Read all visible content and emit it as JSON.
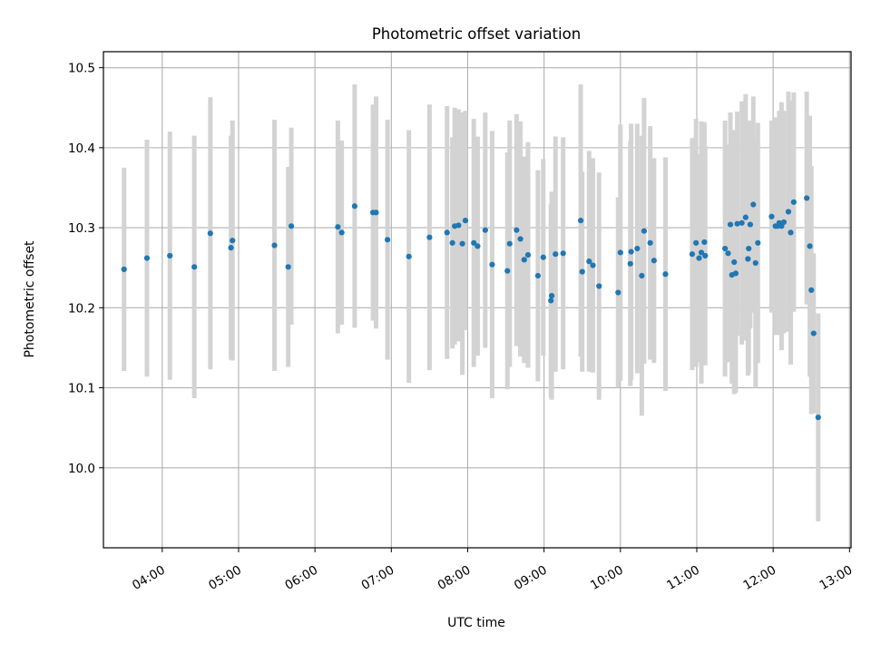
{
  "chart_data": {
    "type": "scatter",
    "title": "Photometric offset variation",
    "xlabel": "UTC time",
    "ylabel": "Photometric offset",
    "x_unit": "UTC hour",
    "xlim": [
      3.23,
      13.02
    ],
    "ylim": [
      9.9,
      10.52
    ],
    "grid": true,
    "xticks": [
      4,
      5,
      6,
      7,
      8,
      9,
      10,
      11,
      12,
      13
    ],
    "xtick_labels": [
      "04:00",
      "05:00",
      "06:00",
      "07:00",
      "08:00",
      "09:00",
      "10:00",
      "11:00",
      "12:00",
      "13:00"
    ],
    "yticks": [
      10.0,
      10.1,
      10.2,
      10.3,
      10.4,
      10.5
    ],
    "ytick_labels": [
      "10.0",
      "10.1",
      "10.2",
      "10.3",
      "10.4",
      "10.5"
    ],
    "colors": {
      "point": "#1f77b4",
      "errorbar": "#d3d3d3",
      "grid": "#b0b0b0"
    },
    "points": [
      [
        3.5,
        10.248,
        0.127
      ],
      [
        3.8,
        10.262,
        0.148
      ],
      [
        4.1,
        10.265,
        0.155
      ],
      [
        4.42,
        10.251,
        0.164
      ],
      [
        4.63,
        10.293,
        0.17
      ],
      [
        4.9,
        10.275,
        0.14
      ],
      [
        4.92,
        10.284,
        0.15
      ],
      [
        5.47,
        10.278,
        0.157
      ],
      [
        5.65,
        10.251,
        0.125
      ],
      [
        5.69,
        10.302,
        0.123
      ],
      [
        6.3,
        10.301,
        0.133
      ],
      [
        6.35,
        10.294,
        0.115
      ],
      [
        6.52,
        10.327,
        0.152
      ],
      [
        6.76,
        10.319,
        0.135
      ],
      [
        6.8,
        10.319,
        0.145
      ],
      [
        6.95,
        10.285,
        0.15
      ],
      [
        7.23,
        10.264,
        0.158
      ],
      [
        7.5,
        10.288,
        0.166
      ],
      [
        7.73,
        10.294,
        0.158
      ],
      [
        7.8,
        10.281,
        0.132
      ],
      [
        7.83,
        10.302,
        0.148
      ],
      [
        7.88,
        10.303,
        0.145
      ],
      [
        7.93,
        10.28,
        0.164
      ],
      [
        7.97,
        10.309,
        0.137
      ],
      [
        8.08,
        10.281,
        0.155
      ],
      [
        8.13,
        10.277,
        0.137
      ],
      [
        8.23,
        10.297,
        0.147
      ],
      [
        8.32,
        10.254,
        0.167
      ],
      [
        8.52,
        10.246,
        0.148
      ],
      [
        8.55,
        10.28,
        0.154
      ],
      [
        8.64,
        10.297,
        0.145
      ],
      [
        8.69,
        10.286,
        0.147
      ],
      [
        8.74,
        10.26,
        0.129
      ],
      [
        8.79,
        10.266,
        0.141
      ],
      [
        8.92,
        10.24,
        0.132
      ],
      [
        8.99,
        10.263,
        0.123
      ],
      [
        9.09,
        10.209,
        0.121
      ],
      [
        9.1,
        10.215,
        0.13
      ],
      [
        9.15,
        10.267,
        0.147
      ],
      [
        9.25,
        10.268,
        0.145
      ],
      [
        9.48,
        10.309,
        0.17
      ],
      [
        9.5,
        10.245,
        0.125
      ],
      [
        9.59,
        10.258,
        0.138
      ],
      [
        9.64,
        10.253,
        0.134
      ],
      [
        9.72,
        10.227,
        0.142
      ],
      [
        9.97,
        10.219,
        0.119
      ],
      [
        10.0,
        10.269,
        0.16
      ],
      [
        10.13,
        10.255,
        0.153
      ],
      [
        10.14,
        10.27,
        0.16
      ],
      [
        10.22,
        10.274,
        0.156
      ],
      [
        10.28,
        10.24,
        0.175
      ],
      [
        10.31,
        10.296,
        0.166
      ],
      [
        10.39,
        10.281,
        0.146
      ],
      [
        10.44,
        10.259,
        0.128
      ],
      [
        10.59,
        10.242,
        0.146
      ],
      [
        10.94,
        10.267,
        0.145
      ],
      [
        10.99,
        10.281,
        0.155
      ],
      [
        11.03,
        10.262,
        0.13
      ],
      [
        11.06,
        10.269,
        0.164
      ],
      [
        11.1,
        10.282,
        0.15
      ],
      [
        11.11,
        10.265,
        0.137
      ],
      [
        11.37,
        10.274,
        0.16
      ],
      [
        11.41,
        10.268,
        0.136
      ],
      [
        11.44,
        10.304,
        0.14
      ],
      [
        11.46,
        10.241,
        0.136
      ],
      [
        11.49,
        10.257,
        0.165
      ],
      [
        11.51,
        10.243,
        0.149
      ],
      [
        11.53,
        10.305,
        0.14
      ],
      [
        11.59,
        10.306,
        0.152
      ],
      [
        11.64,
        10.313,
        0.154
      ],
      [
        11.67,
        10.261,
        0.146
      ],
      [
        11.68,
        10.274,
        0.156
      ],
      [
        11.7,
        10.304,
        0.13
      ],
      [
        11.74,
        10.329,
        0.135
      ],
      [
        11.77,
        10.256,
        0.156
      ],
      [
        11.8,
        10.281,
        0.15
      ],
      [
        11.98,
        10.314,
        0.12
      ],
      [
        12.03,
        10.302,
        0.136
      ],
      [
        12.06,
        10.302,
        0.135
      ],
      [
        12.08,
        10.306,
        0.14
      ],
      [
        12.11,
        10.302,
        0.155
      ],
      [
        12.14,
        10.307,
        0.139
      ],
      [
        12.2,
        10.32,
        0.15
      ],
      [
        12.23,
        10.294,
        0.165
      ],
      [
        12.27,
        10.332,
        0.137
      ],
      [
        12.44,
        10.337,
        0.133
      ],
      [
        12.48,
        10.277,
        0.163
      ],
      [
        12.5,
        10.222,
        0.155
      ],
      [
        12.53,
        10.168,
        0.1
      ],
      [
        12.59,
        10.063,
        0.13
      ]
    ]
  }
}
